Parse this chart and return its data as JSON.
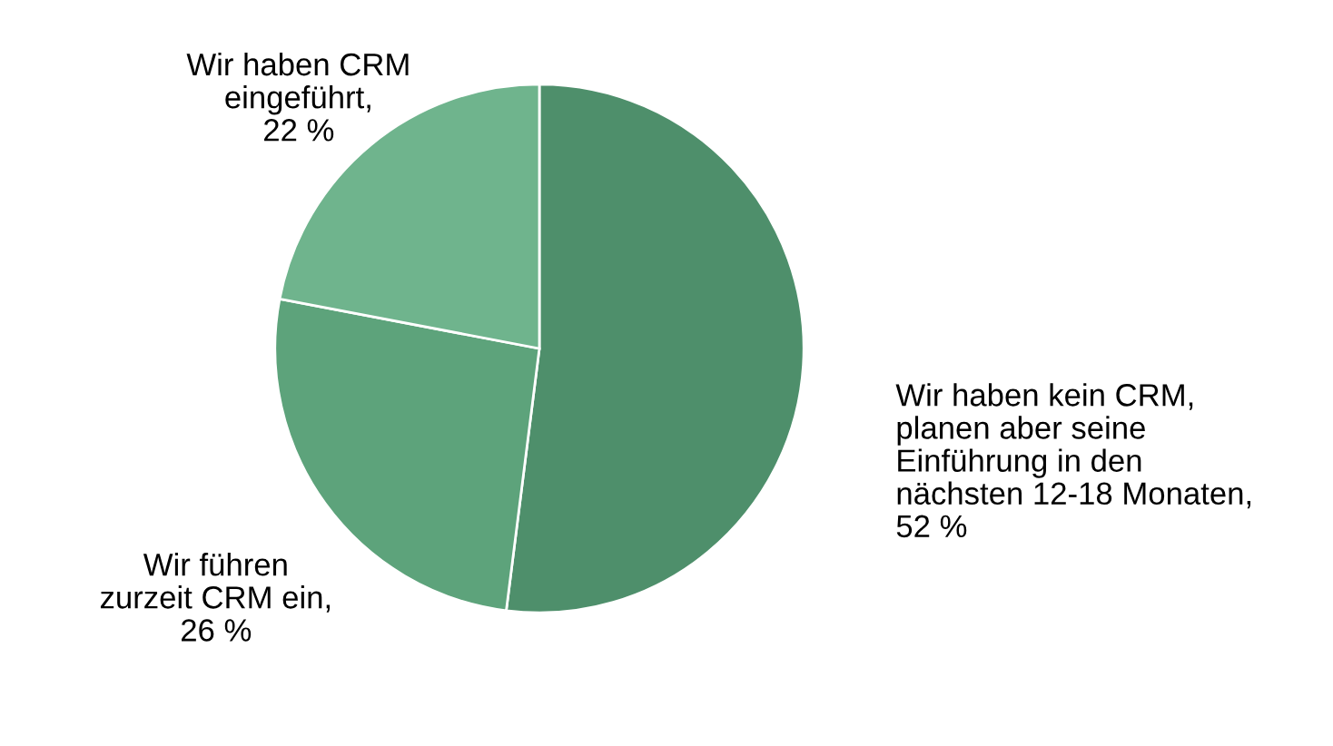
{
  "chart_data": {
    "type": "pie",
    "categories": [
      "Wir haben kein CRM,\nplanen aber seine\nEinführung in den\nnächsten 12-18 Monaten,\n52 %",
      "Wir führen\nzurzeit CRM ein,\n26 %",
      "Wir haben CRM\neingeführt,\n22 %"
    ],
    "values": [
      52,
      26,
      22
    ],
    "colors": [
      "#4e8f6b",
      "#5da37b",
      "#6fb48d"
    ]
  }
}
